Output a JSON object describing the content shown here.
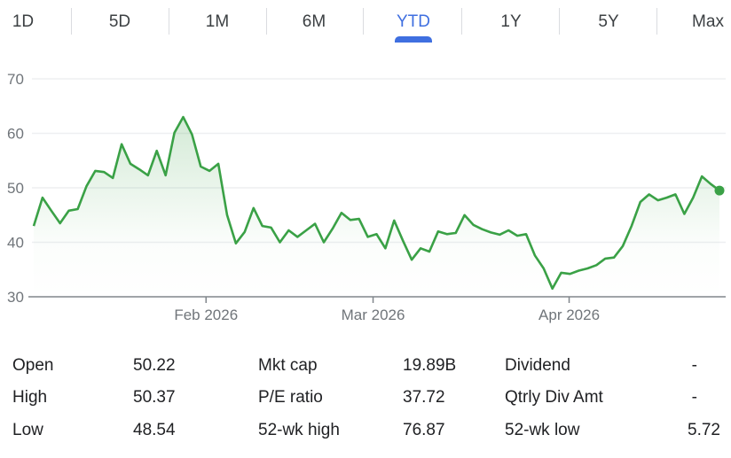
{
  "tabs": [
    {
      "label": "1D"
    },
    {
      "label": "5D"
    },
    {
      "label": "1M"
    },
    {
      "label": "6M"
    },
    {
      "label": "YTD",
      "selected": true
    },
    {
      "label": "1Y"
    },
    {
      "label": "5Y"
    },
    {
      "label": "Max"
    }
  ],
  "colors": {
    "accent": "#3f6fe0",
    "line": "#3aa146",
    "grid": "#f1f3f4",
    "axis": "#80868b"
  },
  "chart_data": {
    "type": "line",
    "title": "",
    "xlabel": "",
    "ylabel": "",
    "ylim": [
      30,
      70
    ],
    "y_ticks": [
      "70",
      "60",
      "50",
      "40",
      "30"
    ],
    "x_ticks": [
      "Feb 2026",
      "Mar 2026",
      "Apr 2026"
    ],
    "grid": true,
    "series": [
      {
        "values": [
          43.0,
          48.2,
          45.8,
          43.5,
          45.8,
          46.1,
          50.3,
          53.1,
          52.9,
          51.8,
          58.0,
          54.4,
          53.4,
          52.3,
          56.8,
          52.3,
          60.1,
          63.0,
          59.8,
          53.9,
          53.1,
          54.4,
          45.0,
          39.8,
          41.9,
          46.3,
          43.0,
          42.7,
          40.0,
          42.2,
          41.0,
          42.2,
          43.4,
          40.0,
          42.5,
          45.4,
          44.1,
          44.3,
          41.0,
          41.5,
          38.9,
          44.0,
          40.3,
          36.8,
          38.9,
          38.3,
          42.0,
          41.5,
          41.7,
          45.0,
          43.2,
          42.4,
          41.8,
          41.4,
          42.2,
          41.2,
          41.5,
          37.6,
          35.2,
          31.5,
          34.4,
          34.2,
          34.8,
          35.2,
          35.8,
          37.0,
          37.2,
          39.3,
          43.0,
          47.4,
          48.8,
          47.7,
          48.2,
          48.8,
          45.2,
          48.2,
          52.1,
          50.7,
          49.5
        ]
      }
    ]
  },
  "stats": [
    [
      {
        "label": "Open",
        "value": "50.22"
      },
      {
        "label": "Mkt cap",
        "value": "19.89B"
      },
      {
        "label": "Dividend",
        "value": "-"
      }
    ],
    [
      {
        "label": "High",
        "value": "50.37"
      },
      {
        "label": "P/E ratio",
        "value": "37.72"
      },
      {
        "label": "Qtrly Div Amt",
        "value": "-"
      }
    ],
    [
      {
        "label": "Low",
        "value": "48.54"
      },
      {
        "label": "52-wk high",
        "value": "76.87"
      },
      {
        "label": "52-wk low",
        "value": "5.72"
      }
    ]
  ]
}
